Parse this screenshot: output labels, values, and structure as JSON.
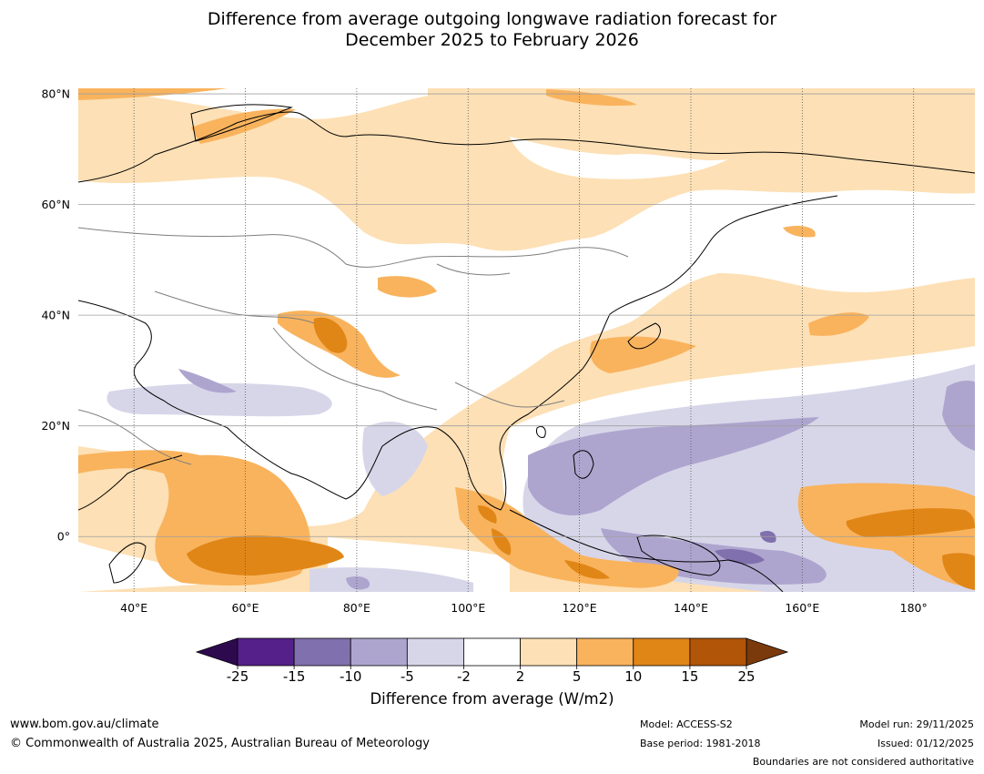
{
  "title": {
    "line1": "Difference from average outgoing longwave radiation forecast for",
    "line2": "December 2025 to February 2026"
  },
  "map": {
    "lat_labels": [
      "80°N",
      "60°N",
      "40°N",
      "20°N",
      "0°"
    ],
    "lat_values": [
      80,
      60,
      40,
      20,
      0
    ],
    "lon_labels": [
      "40°E",
      "60°E",
      "80°E",
      "100°E",
      "120°E",
      "140°E",
      "160°E",
      "180°"
    ],
    "lon_values": [
      40,
      60,
      80,
      100,
      120,
      140,
      160,
      180
    ],
    "extent": {
      "lon_min": 30,
      "lon_max": 191,
      "lat_min": -10,
      "lat_max": 81
    }
  },
  "colorbar": {
    "ticks": [
      "-25",
      "-15",
      "-10",
      "-5",
      "-2",
      "2",
      "5",
      "10",
      "15",
      "25"
    ],
    "colors": [
      "#56208a",
      "#8070ad",
      "#aea5cf",
      "#d7d6e9",
      "#ffffff",
      "#fde0b5",
      "#f9b35d",
      "#e08617",
      "#b15508"
    ],
    "under_color": "#2d0a4e",
    "over_color": "#7b3a0c",
    "title": "Difference from average (W/m2)"
  },
  "footer": {
    "website": "www.bom.gov.au/climate",
    "copyright": "© Commonwealth of Australia 2025, Australian Bureau of Meteorology",
    "model": "Model: ACCESS-S2",
    "base_period": "Base period: 1981-2018",
    "model_run": "Model run: 29/11/2025",
    "issued": "Issued: 01/12/2025",
    "disclaimer": "Boundaries are not considered authoritative"
  }
}
